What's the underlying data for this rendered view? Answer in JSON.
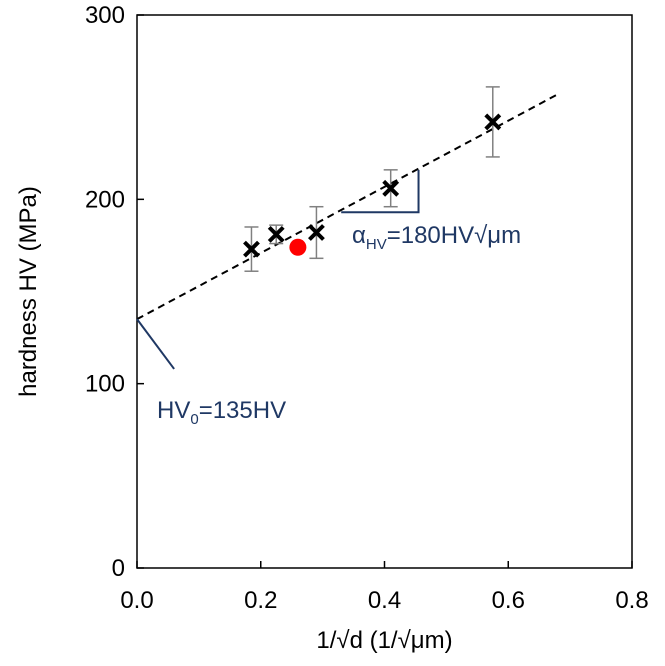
{
  "chart_data": {
    "type": "scatter",
    "xlabel": "1/√d (1/√μm)",
    "ylabel": "hardness HV (MPa)",
    "xlim": [
      0.0,
      0.8
    ],
    "ylim": [
      0,
      300
    ],
    "x_ticks": [
      "0.0",
      "0.2",
      "0.4",
      "0.6",
      "0.8"
    ],
    "y_ticks": [
      "0",
      "100",
      "200",
      "300"
    ],
    "grid": false,
    "series": [
      {
        "marker": "x",
        "color": "#000000",
        "points": [
          {
            "x": 0.185,
            "y": 173,
            "err": 12
          },
          {
            "x": 0.225,
            "y": 181,
            "err": 5
          },
          {
            "x": 0.29,
            "y": 182,
            "err": 14
          },
          {
            "x": 0.41,
            "y": 206,
            "err": 10
          },
          {
            "x": 0.575,
            "y": 242,
            "err": 19
          }
        ]
      },
      {
        "marker": "circle",
        "color": "#ff0000",
        "points": [
          {
            "x": 0.26,
            "y": 174
          }
        ]
      }
    ],
    "fit_line": {
      "x0": 0.0,
      "y0": 135,
      "x1": 0.68,
      "y1": 257,
      "style": "dashed",
      "color": "#000000"
    },
    "annotations": {
      "slope": {
        "base": "α",
        "sub": "HV",
        "rest": "=180HV√μm",
        "color": "#1f3864",
        "triangle": {
          "x_start": 0.33,
          "x_end": 0.455,
          "y_base": 193,
          "y_top": 216
        }
      },
      "intercept": {
        "base": "HV",
        "sub": "0",
        "rest": "=135HV",
        "color": "#1f3864",
        "leader_from": {
          "x": 0.0,
          "y": 135
        },
        "leader_to": {
          "x": 0.06,
          "y": 108
        }
      }
    }
  }
}
